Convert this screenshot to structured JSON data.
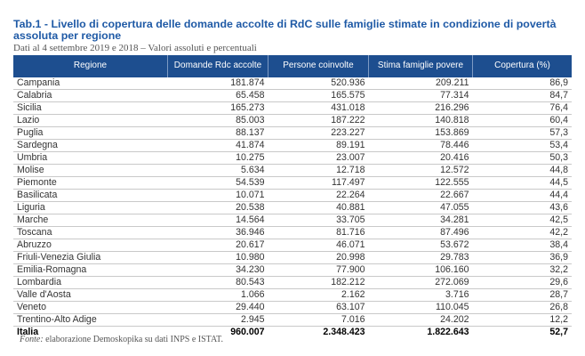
{
  "title": "Tab.1 - Livello di copertura delle domande accolte di RdC sulle famiglie stimate in condizione di povertà assoluta per regione",
  "subtitle": "Dati al 4 settembre 2019 e 2018 – Valori assoluti e percentuali",
  "table": {
    "headers": [
      "Regione",
      "Domande Rdc accolte",
      "Persone coinvolte",
      "Stima famiglie povere",
      "Copertura (%)"
    ],
    "header_color": "#1d4e8f",
    "rows": [
      [
        "Campania",
        "181.874",
        "520.936",
        "209.211",
        "86,9"
      ],
      [
        "Calabria",
        "65.458",
        "165.575",
        "77.314",
        "84,7"
      ],
      [
        "Sicilia",
        "165.273",
        "431.018",
        "216.296",
        "76,4"
      ],
      [
        "Lazio",
        "85.003",
        "187.222",
        "140.818",
        "60,4"
      ],
      [
        "Puglia",
        "88.137",
        "223.227",
        "153.869",
        "57,3"
      ],
      [
        "Sardegna",
        "41.874",
        "89.191",
        "78.446",
        "53,4"
      ],
      [
        "Umbria",
        "10.275",
        "23.007",
        "20.416",
        "50,3"
      ],
      [
        "Molise",
        "5.634",
        "12.718",
        "12.572",
        "44,8"
      ],
      [
        "Piemonte",
        "54.539",
        "117.497",
        "122.555",
        "44,5"
      ],
      [
        "Basilicata",
        "10.071",
        "22.264",
        "22.667",
        "44,4"
      ],
      [
        "Liguria",
        "20.538",
        "40.881",
        "47.055",
        "43,6"
      ],
      [
        "Marche",
        "14.564",
        "33.705",
        "34.281",
        "42,5"
      ],
      [
        "Toscana",
        "36.946",
        "81.716",
        "87.496",
        "42,2"
      ],
      [
        "Abruzzo",
        "20.617",
        "46.071",
        "53.672",
        "38,4"
      ],
      [
        "Friuli-Venezia Giulia",
        "10.980",
        "20.998",
        "29.783",
        "36,9"
      ],
      [
        "Emilia-Romagna",
        "34.230",
        "77.900",
        "106.160",
        "32,2"
      ],
      [
        "Lombardia",
        "80.543",
        "182.212",
        "272.069",
        "29,6"
      ],
      [
        "Valle d'Aosta",
        "1.066",
        "2.162",
        "3.716",
        "28,7"
      ],
      [
        "Veneto",
        "29.440",
        "63.107",
        "110.045",
        "26,8"
      ],
      [
        "Trentino-Alto Adige",
        "2.945",
        "7.016",
        "24.202",
        "12,2"
      ]
    ],
    "total": [
      "Italia",
      "960.007",
      "2.348.423",
      "1.822.643",
      "52,7"
    ]
  },
  "footer": {
    "label": "Fonte:",
    "text": " elaborazione Demoskopika su dati INPS e ISTAT."
  }
}
